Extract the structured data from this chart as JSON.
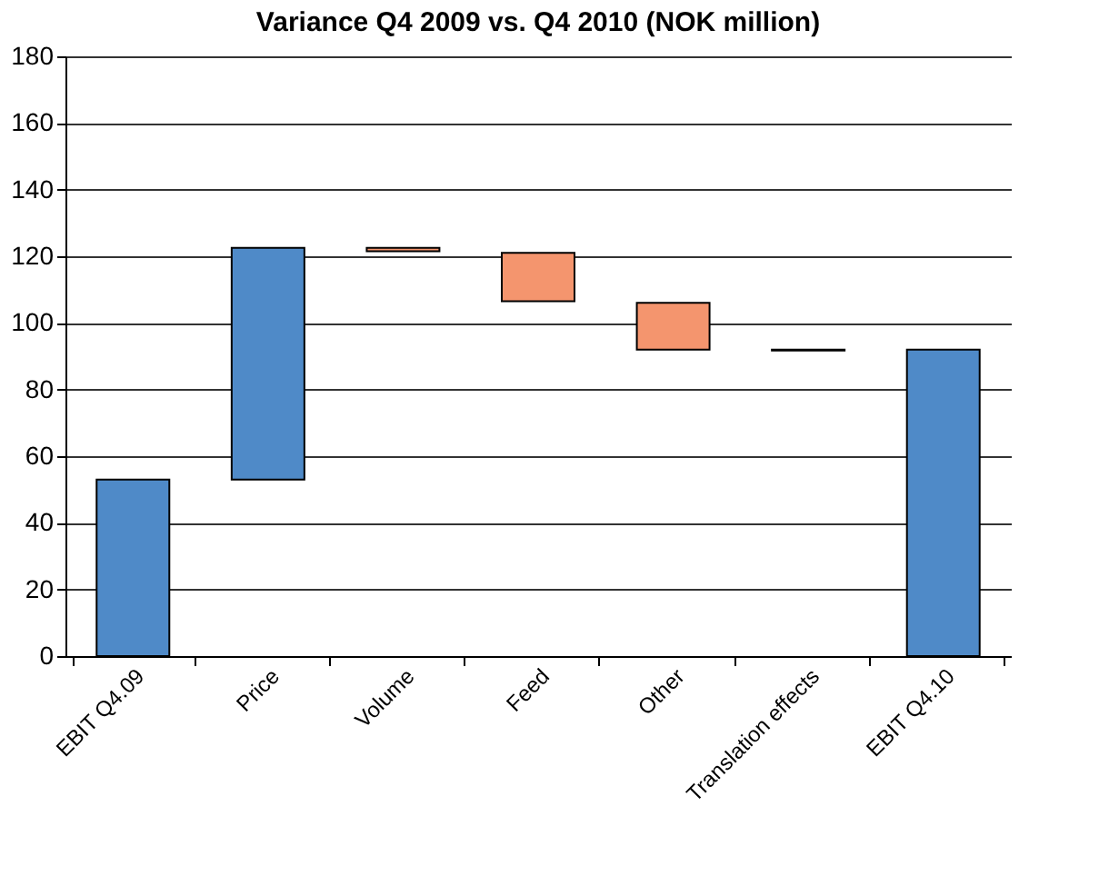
{
  "chart_data": {
    "type": "bar",
    "title": "Variance Q4 2009 vs. Q4 2010  (NOK million)",
    "categories": [
      "EBIT Q4.09",
      "Price",
      "Volume",
      "Feed",
      "Other",
      "Translation effects",
      "EBIT Q4.10"
    ],
    "values": [
      53,
      69.5,
      -1,
      -14.5,
      -14,
      -0.3,
      92
    ],
    "base": [
      0,
      53,
      122.5,
      121,
      106,
      92,
      0
    ],
    "colors": [
      "#4f8ac8",
      "#4f8ac8",
      "#f4956e",
      "#f4956e",
      "#f4956e",
      "#f4956e",
      "#4f8ac8"
    ],
    "ylim": [
      0,
      180
    ],
    "yticks": [
      0,
      20,
      40,
      60,
      80,
      100,
      120,
      140,
      160,
      180
    ],
    "grid": "y"
  }
}
